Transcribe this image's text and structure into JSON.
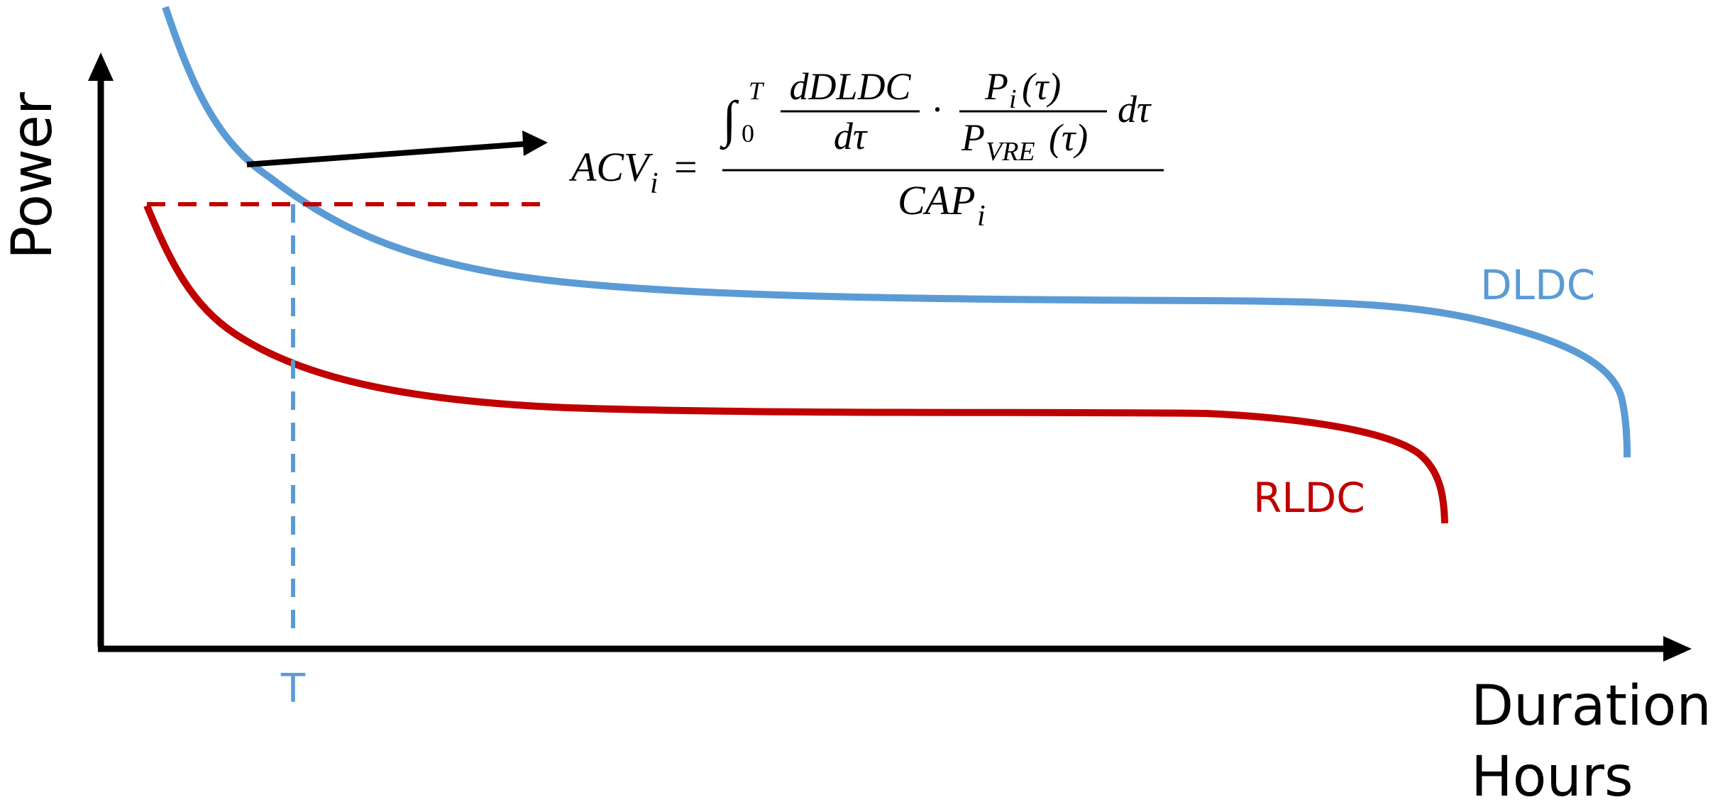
{
  "axes": {
    "y_label": "Power",
    "x_label_line1": "Duration",
    "x_label_line2": "Hours"
  },
  "curves": {
    "dldc_label": "DLDC",
    "rldc_label": "RLDC",
    "dldc_color": "#5b9bd5",
    "rldc_color": "#c00000"
  },
  "marker": {
    "t_label": "T"
  },
  "formula": {
    "lhs": "ACV",
    "lhs_sub": "i",
    "equals": "=",
    "integral": "∫",
    "int_lower": "0",
    "int_upper": "T",
    "frac1_num": "dDLDC",
    "frac1_den": "dτ",
    "dot": "·",
    "frac2_num_main": "P",
    "frac2_num_sub": "i",
    "frac2_num_arg": "(τ)",
    "frac2_den_main": "P",
    "frac2_den_sub": "VRE",
    "frac2_den_arg": "(τ)",
    "dtau": "dτ",
    "denominator_main": "CAP",
    "denominator_sub": "i"
  }
}
